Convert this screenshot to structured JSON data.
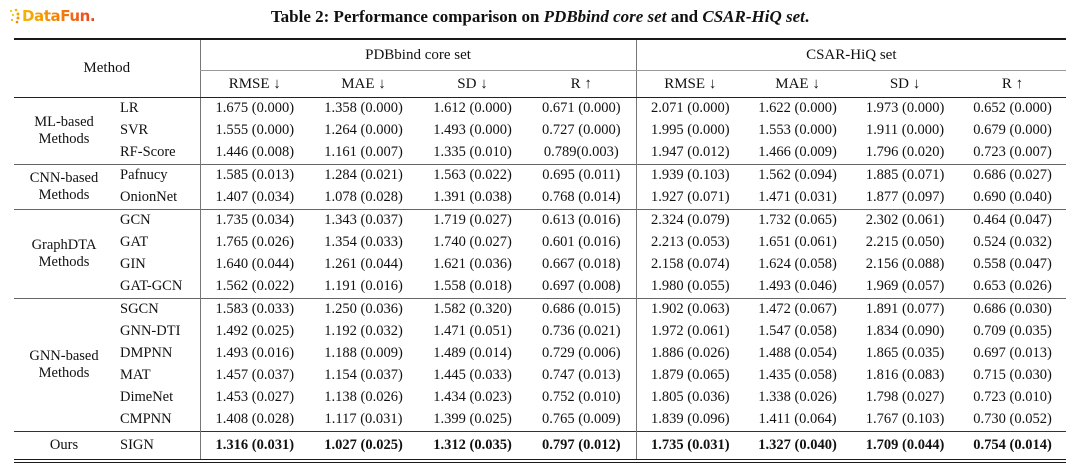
{
  "logo": {
    "text": "DataFun."
  },
  "colors": {
    "logo_gradient_start": "#F7B500",
    "logo_gradient_end": "#E8431C",
    "rule_dark": "#1a1a1a",
    "rule_grey": "#777777",
    "text": "#111111"
  },
  "title": {
    "segments": [
      {
        "text": "Table 2: Performance comparison on ",
        "italic": false
      },
      {
        "text": "PDBbind core set",
        "italic": true
      },
      {
        "text": " and ",
        "italic": false
      },
      {
        "text": "CSAR-HiQ set",
        "italic": true
      },
      {
        "text": ".",
        "italic": false
      }
    ]
  },
  "table": {
    "method_header": "Method",
    "dataset_headers": [
      "PDBbind core set",
      "CSAR-HiQ set"
    ],
    "metric_headers": [
      "RMSE ↓",
      "MAE ↓",
      "SD ↓",
      "R ↑"
    ],
    "groups": [
      {
        "label": "ML-based Methods",
        "bold_values": false,
        "rows": [
          {
            "method": "LR",
            "pdbbind": [
              "1.675 (0.000)",
              "1.358 (0.000)",
              "1.612 (0.000)",
              "0.671 (0.000)"
            ],
            "csar": [
              "2.071 (0.000)",
              "1.622 (0.000)",
              "1.973 (0.000)",
              "0.652 (0.000)"
            ]
          },
          {
            "method": "SVR",
            "pdbbind": [
              "1.555 (0.000)",
              "1.264 (0.000)",
              "1.493 (0.000)",
              "0.727 (0.000)"
            ],
            "csar": [
              "1.995 (0.000)",
              "1.553 (0.000)",
              "1.911 (0.000)",
              "0.679 (0.000)"
            ]
          },
          {
            "method": "RF-Score",
            "pdbbind": [
              "1.446 (0.008)",
              "1.161 (0.007)",
              "1.335 (0.010)",
              "0.789(0.003)"
            ],
            "csar": [
              "1.947 (0.012)",
              "1.466 (0.009)",
              "1.796 (0.020)",
              "0.723 (0.007)"
            ]
          }
        ]
      },
      {
        "label": "CNN-based Methods",
        "bold_values": false,
        "rows": [
          {
            "method": "Pafnucy",
            "pdbbind": [
              "1.585 (0.013)",
              "1.284 (0.021)",
              "1.563 (0.022)",
              "0.695 (0.011)"
            ],
            "csar": [
              "1.939 (0.103)",
              "1.562 (0.094)",
              "1.885 (0.071)",
              "0.686 (0.027)"
            ]
          },
          {
            "method": "OnionNet",
            "pdbbind": [
              "1.407 (0.034)",
              "1.078 (0.028)",
              "1.391 (0.038)",
              "0.768 (0.014)"
            ],
            "csar": [
              "1.927 (0.071)",
              "1.471 (0.031)",
              "1.877 (0.097)",
              "0.690 (0.040)"
            ]
          }
        ]
      },
      {
        "label": "GraphDTA Methods",
        "bold_values": false,
        "rows": [
          {
            "method": "GCN",
            "pdbbind": [
              "1.735 (0.034)",
              "1.343 (0.037)",
              "1.719 (0.027)",
              "0.613 (0.016)"
            ],
            "csar": [
              "2.324 (0.079)",
              "1.732 (0.065)",
              "2.302 (0.061)",
              "0.464 (0.047)"
            ]
          },
          {
            "method": "GAT",
            "pdbbind": [
              "1.765 (0.026)",
              "1.354 (0.033)",
              "1.740 (0.027)",
              "0.601 (0.016)"
            ],
            "csar": [
              "2.213 (0.053)",
              "1.651 (0.061)",
              "2.215 (0.050)",
              "0.524 (0.032)"
            ]
          },
          {
            "method": "GIN",
            "pdbbind": [
              "1.640 (0.044)",
              "1.261 (0.044)",
              "1.621 (0.036)",
              "0.667 (0.018)"
            ],
            "csar": [
              "2.158 (0.074)",
              "1.624 (0.058)",
              "2.156 (0.088)",
              "0.558 (0.047)"
            ]
          },
          {
            "method": "GAT-GCN",
            "pdbbind": [
              "1.562 (0.022)",
              "1.191 (0.016)",
              "1.558 (0.018)",
              "0.697 (0.008)"
            ],
            "csar": [
              "1.980 (0.055)",
              "1.493 (0.046)",
              "1.969 (0.057)",
              "0.653 (0.026)"
            ]
          }
        ]
      },
      {
        "label": "GNN-based Methods",
        "bold_values": false,
        "rows": [
          {
            "method": "SGCN",
            "pdbbind": [
              "1.583 (0.033)",
              "1.250 (0.036)",
              "1.582 (0.320)",
              "0.686 (0.015)"
            ],
            "csar": [
              "1.902 (0.063)",
              "1.472 (0.067)",
              "1.891 (0.077)",
              "0.686 (0.030)"
            ]
          },
          {
            "method": "GNN-DTI",
            "pdbbind": [
              "1.492 (0.025)",
              "1.192 (0.032)",
              "1.471 (0.051)",
              "0.736 (0.021)"
            ],
            "csar": [
              "1.972 (0.061)",
              "1.547 (0.058)",
              "1.834 (0.090)",
              "0.709 (0.035)"
            ]
          },
          {
            "method": "DMPNN",
            "pdbbind": [
              "1.493 (0.016)",
              "1.188 (0.009)",
              "1.489 (0.014)",
              "0.729 (0.006)"
            ],
            "csar": [
              "1.886 (0.026)",
              "1.488 (0.054)",
              "1.865 (0.035)",
              "0.697 (0.013)"
            ]
          },
          {
            "method": "MAT",
            "pdbbind": [
              "1.457 (0.037)",
              "1.154 (0.037)",
              "1.445 (0.033)",
              "0.747 (0.013)"
            ],
            "csar": [
              "1.879 (0.065)",
              "1.435 (0.058)",
              "1.816 (0.083)",
              "0.715 (0.030)"
            ]
          },
          {
            "method": "DimeNet",
            "pdbbind": [
              "1.453 (0.027)",
              "1.138 (0.026)",
              "1.434 (0.023)",
              "0.752 (0.010)"
            ],
            "csar": [
              "1.805 (0.036)",
              "1.338 (0.026)",
              "1.798 (0.027)",
              "0.723 (0.010)"
            ]
          },
          {
            "method": "CMPNN",
            "pdbbind": [
              "1.408 (0.028)",
              "1.117 (0.031)",
              "1.399 (0.025)",
              "0.765 (0.009)"
            ],
            "csar": [
              "1.839 (0.096)",
              "1.411 (0.064)",
              "1.767 (0.103)",
              "0.730 (0.052)"
            ]
          }
        ]
      },
      {
        "label": "Ours",
        "bold_values": true,
        "rows": [
          {
            "method": "SIGN",
            "pdbbind": [
              "1.316 (0.031)",
              "1.027 (0.025)",
              "1.312 (0.035)",
              "0.797 (0.012)"
            ],
            "csar": [
              "1.735 (0.031)",
              "1.327 (0.040)",
              "1.709 (0.044)",
              "0.754 (0.014)"
            ]
          }
        ]
      }
    ]
  }
}
